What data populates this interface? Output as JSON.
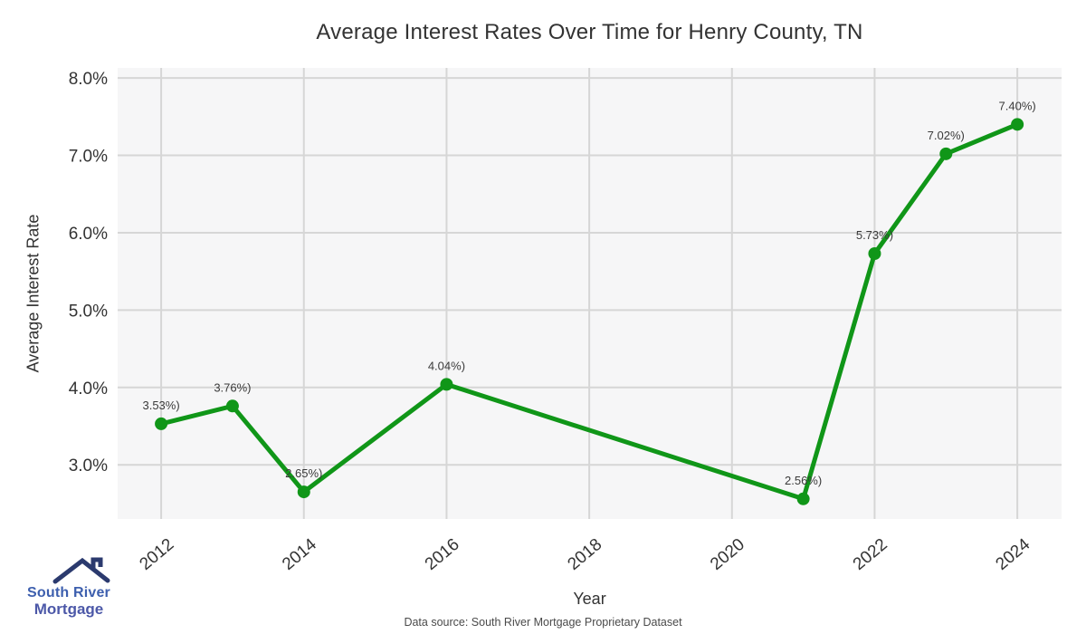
{
  "page": {
    "data_source": "Data source: South River Mortgage Proprietary Dataset"
  },
  "logo": {
    "line1": "South River",
    "line2": "Mortgage",
    "roof_color": "#2b3a6e",
    "line1_color": "#3d5fae",
    "line2_color": "#4c58a8"
  },
  "chart_data": {
    "type": "line",
    "title": "Average Interest Rates Over Time for Henry County, TN",
    "xlabel": "Year",
    "ylabel": "Average Interest Rate",
    "x": [
      2012,
      2013,
      2014,
      2016,
      2021,
      2022,
      2023,
      2024
    ],
    "values": [
      3.53,
      3.76,
      2.65,
      4.04,
      2.56,
      5.73,
      7.02,
      7.4
    ],
    "point_labels": [
      "3.53%)",
      "3.76%)",
      "2.65%)",
      "4.04%)",
      "2.56%)",
      "5.73%)",
      "7.02%)",
      "7.40%)"
    ],
    "x_ticks": [
      2012,
      2014,
      2016,
      2018,
      2020,
      2022,
      2024
    ],
    "x_tick_labels": [
      "2012",
      "2014",
      "2016",
      "2018",
      "2020",
      "2022",
      "2024"
    ],
    "y_tick_values": [
      8.0,
      7.0,
      6.0,
      5.0,
      4.0,
      3.0
    ],
    "y_tick_labels": [
      "8.0%",
      "7.0%",
      "6.0%",
      "5.0%",
      "4.0%",
      "3.0%"
    ],
    "xlim": [
      2011.39,
      2024.62
    ],
    "ylim": [
      2.3,
      8.13
    ],
    "grid": true,
    "legend_position": "none",
    "line_color": "#109618",
    "marker_color": "#109618",
    "plot_bg_color": "#f6f6f7",
    "grid_color": "#d6d6d6",
    "tick_color": "#333333",
    "label_color": "#3a3a3a"
  }
}
